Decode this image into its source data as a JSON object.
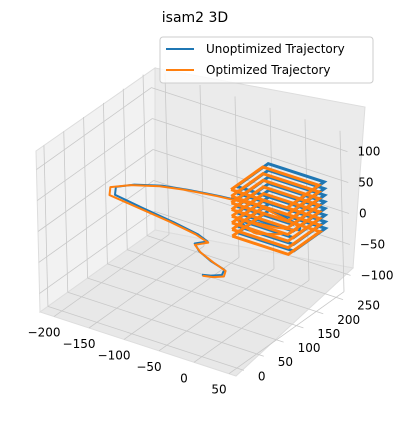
{
  "chart_data": {
    "type": "line",
    "projection": "3d",
    "title": "isam2 3D",
    "xlabel": "",
    "ylabel": "",
    "zlabel": "",
    "xlim": [
      -220,
      60
    ],
    "ylim": [
      -20,
      270
    ],
    "zlim": [
      -130,
      130
    ],
    "xticks": [
      "−200",
      "−150",
      "−100",
      "−50",
      "0",
      "50"
    ],
    "yticks": [
      "0",
      "50",
      "100",
      "150",
      "200",
      "250"
    ],
    "zticks": [
      "−100",
      "−50",
      "0",
      "50",
      "100"
    ],
    "grid": true,
    "legend": {
      "position": "top-right"
    },
    "series": [
      {
        "name": "Unoptimized Trajectory",
        "color": "#1f77b4",
        "points": [
          [
            0,
            5,
            0
          ],
          [
            10,
            10,
            0
          ],
          [
            20,
            20,
            0
          ],
          [
            15,
            35,
            0
          ],
          [
            -10,
            45,
            0
          ],
          [
            -35,
            60,
            0
          ],
          [
            -50,
            75,
            0
          ],
          [
            -40,
            90,
            0
          ],
          [
            -60,
            100,
            0
          ],
          [
            -100,
            110,
            0
          ],
          [
            -150,
            120,
            0
          ],
          [
            -195,
            130,
            0
          ],
          [
            -205,
            150,
            0
          ],
          [
            -190,
            170,
            0
          ],
          [
            -160,
            190,
            0
          ],
          [
            -130,
            200,
            0
          ],
          [
            -110,
            205,
            0
          ],
          [
            -90,
            210,
            0
          ],
          [
            -60,
            215,
            0
          ],
          [
            -40,
            220,
            0
          ],
          [
            -20,
            215,
            0
          ],
          [
            0,
            210,
            0
          ],
          [
            20,
            205,
            0
          ],
          [
            30,
            200,
            0
          ],
          [
            35,
            190,
            0
          ],
          [
            10,
            180,
            0
          ],
          [
            -20,
            175,
            0
          ],
          [
            -40,
            170,
            0
          ],
          [
            -30,
            160,
            0
          ],
          [
            -5,
            150,
            0
          ],
          [
            0,
            150,
            0
          ],
          [
            20,
            165,
            0
          ],
          [
            25,
            170,
            0
          ]
        ],
        "stacked_segment": {
          "x_range": [
            -40,
            40
          ],
          "y_range": [
            165,
            245
          ],
          "z_range": [
            -20,
            55
          ],
          "layers": 8
        }
      },
      {
        "name": "Optimized Trajectory",
        "color": "#ff7f0e",
        "points": [
          [
            2,
            3,
            0
          ],
          [
            14,
            8,
            0
          ],
          [
            24,
            18,
            0
          ],
          [
            18,
            33,
            0
          ],
          [
            -6,
            44,
            0
          ],
          [
            -32,
            58,
            0
          ],
          [
            -48,
            72,
            0
          ],
          [
            -38,
            88,
            0
          ],
          [
            -62,
            98,
            0
          ],
          [
            -104,
            108,
            0
          ],
          [
            -155,
            117,
            0
          ],
          [
            -200,
            125,
            0
          ],
          [
            -210,
            145,
            0
          ],
          [
            -193,
            166,
            0
          ],
          [
            -163,
            186,
            0
          ],
          [
            -135,
            197,
            0
          ],
          [
            -112,
            203,
            0
          ],
          [
            -92,
            208,
            0
          ],
          [
            -62,
            213,
            0
          ],
          [
            -42,
            218,
            0
          ],
          [
            -22,
            213,
            0
          ],
          [
            -2,
            208,
            0
          ],
          [
            18,
            203,
            0
          ],
          [
            28,
            198,
            0
          ],
          [
            32,
            188,
            0
          ],
          [
            8,
            178,
            0
          ],
          [
            -22,
            173,
            0
          ],
          [
            -42,
            168,
            0
          ],
          [
            -32,
            158,
            0
          ],
          [
            -7,
            148,
            0
          ],
          [
            -2,
            148,
            0
          ],
          [
            18,
            163,
            0
          ],
          [
            23,
            168,
            0
          ]
        ],
        "stacked_segment": {
          "x_range": [
            -45,
            35
          ],
          "y_range": [
            160,
            240
          ],
          "z_range": [
            -25,
            50
          ],
          "layers": 8
        }
      }
    ]
  }
}
